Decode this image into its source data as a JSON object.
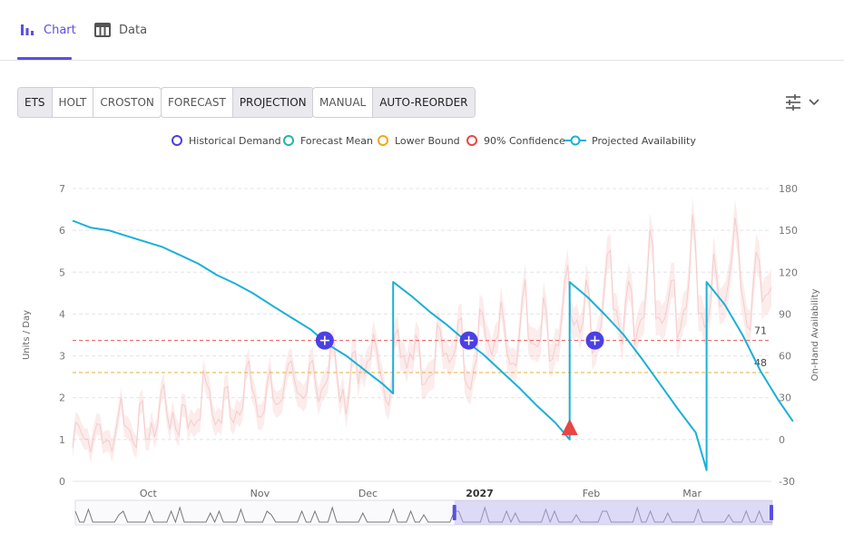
{
  "tabs": [
    {
      "label": "Chart",
      "icon": "bar-chart-icon",
      "active": true
    },
    {
      "label": "Data",
      "icon": "table-icon",
      "active": false
    }
  ],
  "toolbar": {
    "model_group": [
      "ETS",
      "HOLT",
      "CROSTON"
    ],
    "model_selected": "ETS",
    "view_group": [
      "FORECAST",
      "PROJECTION"
    ],
    "view_selected": "PROJECTION",
    "reorder_group": [
      "MANUAL",
      "AUTO-REORDER"
    ],
    "reorder_selected": "AUTO-REORDER",
    "settings_icon": "sliders-icon"
  },
  "legend": [
    {
      "label": "Historical Demand",
      "color": "#4b3fe6",
      "marker": "circle"
    },
    {
      "label": "Forecast Mean",
      "color": "#1fb8a6",
      "marker": "circle"
    },
    {
      "label": "Lower Bound",
      "color": "#f0a81c",
      "marker": "circle"
    },
    {
      "label": "90% Confidence",
      "color": "#ee4444",
      "marker": "circle"
    },
    {
      "label": "Projected Availability",
      "color": "#1ab0d8",
      "marker": "line-circle"
    }
  ],
  "chart_data": {
    "type": "line",
    "ylabel": "Units / Day",
    "y2label": "On-Hand Availability",
    "ylim": [
      0,
      7
    ],
    "y2lim": [
      -30,
      180
    ],
    "yticks": [
      0,
      1,
      2,
      3,
      4,
      5,
      6,
      7
    ],
    "y2ticks": [
      -30,
      0,
      30,
      60,
      90,
      120,
      150,
      180
    ],
    "xlim": [
      "2026-09-10",
      "2027-03-23"
    ],
    "x_ticks": [
      {
        "label": "Oct",
        "date": "2026-10-01",
        "bold": false
      },
      {
        "label": "Nov",
        "date": "2026-11-01",
        "bold": false
      },
      {
        "label": "Dec",
        "date": "2026-12-01",
        "bold": false
      },
      {
        "label": "2027",
        "date": "2027-01-01",
        "bold": true
      },
      {
        "label": "Feb",
        "date": "2027-02-01",
        "bold": false
      },
      {
        "label": "Mar",
        "date": "2027-03-01",
        "bold": false
      }
    ],
    "reference_lines": [
      {
        "name": "90% Confidence",
        "value": 71,
        "axis": "y2",
        "color": "#e85a5a"
      },
      {
        "name": "Lower Bound",
        "value": 48,
        "axis": "y2",
        "color": "#e3b13a"
      }
    ],
    "series": [
      {
        "name": "Projected Availability",
        "axis": "y2",
        "color": "#1ab0d8",
        "points": [
          [
            "2026-09-10",
            157
          ],
          [
            "2026-09-12",
            155
          ],
          [
            "2026-09-15",
            152
          ],
          [
            "2026-09-20",
            150
          ],
          [
            "2026-09-25",
            146
          ],
          [
            "2026-09-30",
            142
          ],
          [
            "2026-10-05",
            138
          ],
          [
            "2026-10-10",
            132
          ],
          [
            "2026-10-15",
            126
          ],
          [
            "2026-10-20",
            118
          ],
          [
            "2026-10-25",
            112
          ],
          [
            "2026-10-30",
            105
          ],
          [
            "2026-11-05",
            95
          ],
          [
            "2026-11-10",
            87
          ],
          [
            "2026-11-15",
            79
          ],
          [
            "2026-11-20",
            68
          ],
          [
            "2026-11-25",
            60
          ],
          [
            "2026-11-30",
            50
          ],
          [
            "2026-12-05",
            40
          ],
          [
            "2026-12-08",
            33
          ],
          [
            "2026-12-08",
            113
          ],
          [
            "2026-12-13",
            103
          ],
          [
            "2026-12-18",
            92
          ],
          [
            "2026-12-23",
            82
          ],
          [
            "2026-12-28",
            71
          ],
          [
            "2027-01-02",
            61
          ],
          [
            "2027-01-07",
            49
          ],
          [
            "2027-01-12",
            37
          ],
          [
            "2027-01-17",
            24
          ],
          [
            "2027-01-22",
            12
          ],
          [
            "2027-01-26",
            0
          ],
          [
            "2027-01-26",
            113
          ],
          [
            "2027-01-31",
            102
          ],
          [
            "2027-02-05",
            89
          ],
          [
            "2027-02-10",
            75
          ],
          [
            "2027-02-15",
            58
          ],
          [
            "2027-02-20",
            40
          ],
          [
            "2027-02-25",
            22
          ],
          [
            "2027-03-02",
            5
          ],
          [
            "2027-03-05",
            -22
          ],
          [
            "2027-03-05",
            113
          ],
          [
            "2027-03-10",
            97
          ],
          [
            "2027-03-15",
            75
          ],
          [
            "2027-03-20",
            49
          ],
          [
            "2027-03-25",
            28
          ],
          [
            "2027-03-29",
            13
          ]
        ]
      }
    ],
    "reorder_markers": [
      {
        "date": "2026-11-19",
        "value": 71,
        "icon": "crosshair-icon"
      },
      {
        "date": "2026-12-29",
        "value": 71,
        "icon": "crosshair-icon"
      },
      {
        "date": "2027-02-02",
        "value": 71,
        "icon": "crosshair-icon"
      }
    ],
    "warning_marker": {
      "date": "2027-01-26",
      "value": 7,
      "icon": "warning-triangle-icon"
    },
    "value_labels": [
      {
        "text": "71"
      },
      {
        "text": "48"
      }
    ]
  },
  "navigator": {
    "window_start": "2026-12-25",
    "window_end": "2027-03-31"
  }
}
